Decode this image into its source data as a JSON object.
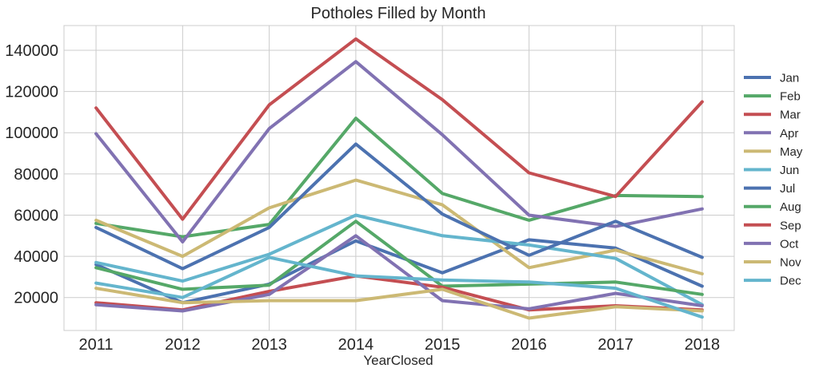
{
  "chart_data": {
    "type": "line",
    "title": "Potholes Filled by Month",
    "xlabel": "YearClosed",
    "ylabel": "",
    "x": [
      2011,
      2012,
      2013,
      2014,
      2015,
      2016,
      2017,
      2018
    ],
    "xlim": [
      2010.63,
      2018.37
    ],
    "ylim": [
      4000,
      152000
    ],
    "yticks": [
      20000,
      40000,
      60000,
      80000,
      100000,
      120000,
      140000
    ],
    "grid": true,
    "legend_position": "right",
    "series": [
      {
        "name": "Jan",
        "color": "#4c72b0",
        "values": [
          36000,
          17500,
          26500,
          47500,
          32000,
          48000,
          44000,
          25500
        ]
      },
      {
        "name": "Feb",
        "color": "#55a868",
        "values": [
          56000,
          49500,
          55500,
          107000,
          70500,
          57500,
          69500,
          69000
        ]
      },
      {
        "name": "Mar",
        "color": "#c44e52",
        "values": [
          112000,
          58000,
          113500,
          145500,
          116000,
          80500,
          69000,
          115000
        ]
      },
      {
        "name": "Apr",
        "color": "#8172b2",
        "values": [
          99500,
          47000,
          102000,
          134500,
          99000,
          60000,
          54500,
          63000
        ]
      },
      {
        "name": "May",
        "color": "#ccb974",
        "values": [
          57500,
          40000,
          63500,
          77000,
          65000,
          34500,
          43000,
          31500
        ]
      },
      {
        "name": "Jun",
        "color": "#64b5cd",
        "values": [
          37000,
          28000,
          41000,
          60000,
          50000,
          45500,
          39000,
          16500
        ]
      },
      {
        "name": "Jul",
        "color": "#4c72b0",
        "values": [
          54000,
          34000,
          54000,
          94500,
          60500,
          40500,
          57000,
          39500
        ]
      },
      {
        "name": "Aug",
        "color": "#55a868",
        "values": [
          34500,
          24000,
          26000,
          57000,
          25500,
          26500,
          27500,
          21500
        ]
      },
      {
        "name": "Sep",
        "color": "#c44e52",
        "values": [
          17500,
          14000,
          23000,
          30500,
          25000,
          14000,
          16000,
          14000
        ]
      },
      {
        "name": "Oct",
        "color": "#8172b2",
        "values": [
          16500,
          13500,
          21500,
          50000,
          18500,
          14500,
          22000,
          16000
        ]
      },
      {
        "name": "Nov",
        "color": "#ccb974",
        "values": [
          24500,
          17500,
          18500,
          18500,
          24000,
          10000,
          15500,
          13500
        ]
      },
      {
        "name": "Dec",
        "color": "#64b5cd",
        "values": [
          27000,
          20000,
          39500,
          30500,
          28500,
          27500,
          24500,
          10500
        ]
      }
    ]
  }
}
